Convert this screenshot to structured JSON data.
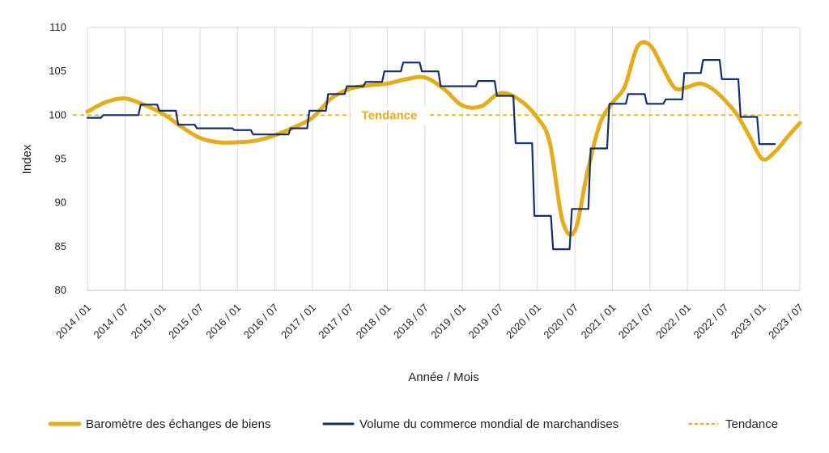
{
  "chart_data": {
    "type": "line",
    "title": "",
    "xlabel": "Année / Mois",
    "ylabel": "Index",
    "ylim": [
      80,
      110
    ],
    "yticks": [
      "80",
      "85",
      "90",
      "95",
      "100",
      "105",
      "110"
    ],
    "x_start": "2014-01",
    "x_end": "2023-07",
    "xticks": [
      "2014 / 01",
      "2014 / 07",
      "2015 / 01",
      "2015 / 07",
      "2016 / 01",
      "2016 / 07",
      "2017 / 01",
      "2017 / 07",
      "2018 / 01",
      "2018 / 07",
      "2019 / 01",
      "2019 / 07",
      "2020 / 01",
      "2020 / 07",
      "2021 / 01",
      "2021 / 07",
      "2022 / 01",
      "2022 / 07",
      "2023 / 01",
      "2023 / 07"
    ],
    "grid": "vertical",
    "legend_position": "bottom",
    "trend": {
      "name": "Tendance",
      "value": 100,
      "label": "Tendance",
      "color": "#E3AE1E"
    },
    "series": [
      {
        "name": "Baromètre des échanges de biens",
        "color": "#E3AE1E",
        "style": "smooth",
        "x": [
          "2014-01",
          "2014-04",
          "2014-07",
          "2014-10",
          "2015-01",
          "2015-04",
          "2015-07",
          "2015-10",
          "2016-01",
          "2016-04",
          "2016-07",
          "2016-10",
          "2017-01",
          "2017-04",
          "2017-07",
          "2017-10",
          "2018-01",
          "2018-04",
          "2018-07",
          "2018-10",
          "2019-01",
          "2019-04",
          "2019-07",
          "2019-10",
          "2020-01",
          "2020-03",
          "2020-05",
          "2020-07",
          "2020-09",
          "2020-11",
          "2021-01",
          "2021-03",
          "2021-05",
          "2021-07",
          "2021-09",
          "2021-11",
          "2022-01",
          "2022-03",
          "2022-05",
          "2022-07",
          "2022-09",
          "2022-11",
          "2023-01",
          "2023-03",
          "2023-05",
          "2023-07"
        ],
        "y": [
          100.4,
          101.5,
          101.9,
          101.2,
          100.2,
          98.7,
          97.4,
          96.9,
          96.9,
          97.1,
          97.7,
          98.6,
          99.7,
          101.9,
          103.0,
          103.4,
          103.6,
          104.1,
          104.3,
          103.0,
          101.1,
          101.0,
          102.5,
          101.8,
          99.7,
          96.8,
          88.0,
          86.8,
          93.5,
          99.0,
          101.4,
          103.3,
          107.8,
          108.0,
          105.5,
          103.1,
          103.2,
          103.6,
          103.0,
          101.7,
          100.0,
          97.5,
          95.0,
          95.8,
          97.5,
          99.1
        ]
      },
      {
        "name": "Volume du commerce mondial de marchandises",
        "color": "#152E6E",
        "style": "step",
        "x": [
          "2014-01",
          "2014-04",
          "2014-07",
          "2014-10",
          "2015-01",
          "2015-04",
          "2015-07",
          "2015-10",
          "2016-01",
          "2016-04",
          "2016-07",
          "2016-10",
          "2017-01",
          "2017-04",
          "2017-07",
          "2017-10",
          "2018-01",
          "2018-04",
          "2018-07",
          "2018-10",
          "2019-01",
          "2019-04",
          "2019-07",
          "2019-10",
          "2020-01",
          "2020-04",
          "2020-07",
          "2020-10",
          "2021-01",
          "2021-04",
          "2021-07",
          "2021-10",
          "2022-01",
          "2022-04",
          "2022-07",
          "2022-10",
          "2023-01",
          "2023-03"
        ],
        "y": [
          99.7,
          100.0,
          100.0,
          101.2,
          100.5,
          98.9,
          98.5,
          98.5,
          98.3,
          97.8,
          97.8,
          98.5,
          100.5,
          102.4,
          103.3,
          103.8,
          105.0,
          106.0,
          105.0,
          103.3,
          103.3,
          103.9,
          102.2,
          96.8,
          88.5,
          84.7,
          89.3,
          96.2,
          101.3,
          102.4,
          101.3,
          101.8,
          104.8,
          106.3,
          104.1,
          99.8,
          96.7,
          96.7
        ]
      }
    ]
  }
}
